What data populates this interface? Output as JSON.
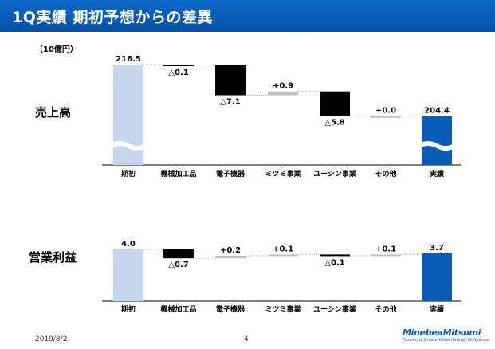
{
  "header": {
    "title": "1Q実績 期初予想からの差異"
  },
  "unit_label": "（10億円）",
  "footer": {
    "date": "2019/8/2",
    "page": "4",
    "logo": "MinebeaMitsumi",
    "tagline": "Passion to Create Value through Difference"
  },
  "colors": {
    "accent": "#0a5bb5",
    "start_bar": "#c5d6ee",
    "negative": "#000000",
    "positive": "#c0c0c0"
  },
  "chart_data": [
    {
      "type": "bar",
      "title": "売上高",
      "categories": [
        "期初",
        "機械加工品",
        "電子機器",
        "ミツミ事業",
        "ユーシン事業",
        "その他",
        "実績"
      ],
      "values": [
        216.5,
        -0.1,
        -7.1,
        0.9,
        -5.8,
        0.0,
        204.4
      ],
      "labels": [
        "216.5",
        "△0.1",
        "△7.1",
        "+0.9",
        "△5.8",
        "+0.0",
        "204.4"
      ],
      "axis_break": true
    },
    {
      "type": "bar",
      "title": "営業利益",
      "categories": [
        "期初",
        "機械加工品",
        "電子機器",
        "ミツミ事業",
        "ユーシン事業",
        "その他",
        "実績"
      ],
      "values": [
        4.0,
        -0.7,
        0.2,
        0.1,
        -0.1,
        0.1,
        3.7
      ],
      "labels": [
        "4.0",
        "△0.7",
        "+0.2",
        "+0.1",
        "△0.1",
        "+0.1",
        "3.7"
      ],
      "axis_break": false
    }
  ]
}
